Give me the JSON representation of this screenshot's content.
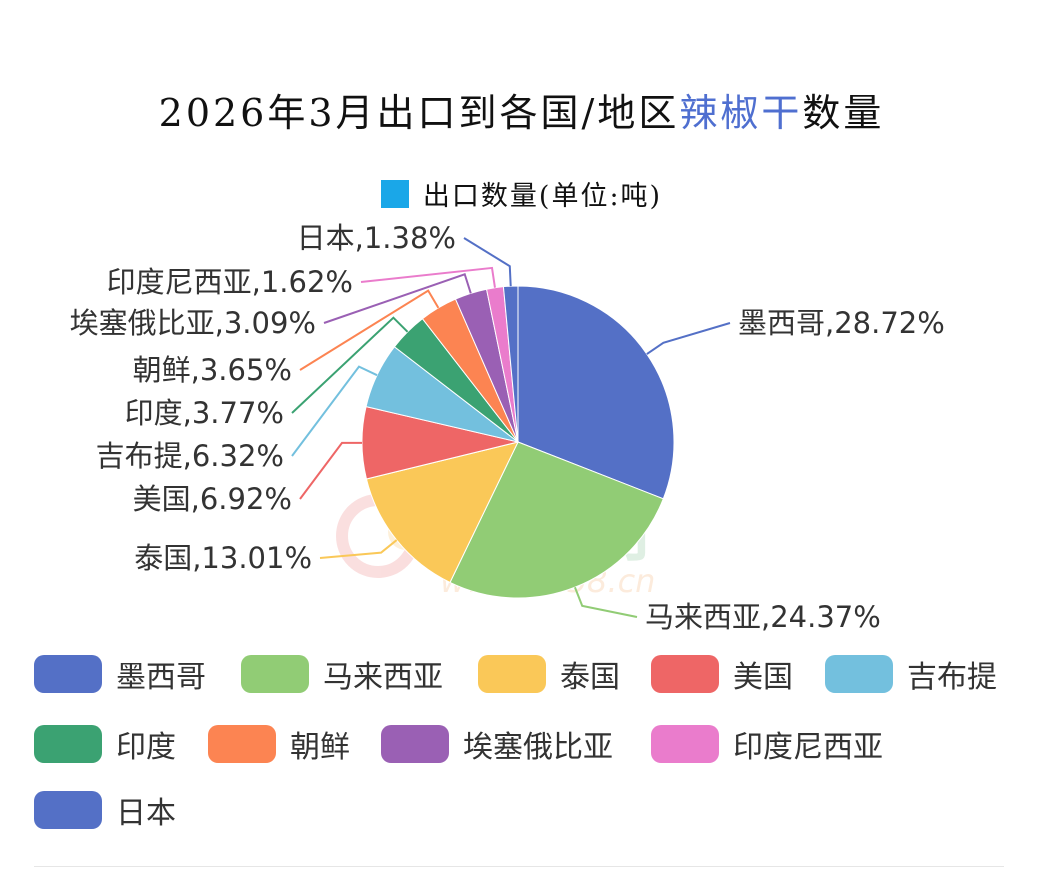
{
  "title": {
    "prefix": "2026年3月出口到各国/地区",
    "highlight": "辣椒干",
    "suffix": "数量"
  },
  "legend": {
    "label": "出口数量(单位:吨)",
    "color": "#1aa7e8"
  },
  "watermark": {
    "text": "中椒网",
    "url": "www.e658.cn"
  },
  "chart_data": {
    "type": "pie",
    "title": "2026年3月出口到各国/地区辣椒干数量",
    "series_name": "出口数量(单位:吨)",
    "unit": "%",
    "slices": [
      {
        "label": "墨西哥",
        "value": 28.72,
        "color": "#5470c6"
      },
      {
        "label": "马来西亚",
        "value": 24.37,
        "color": "#91cc75"
      },
      {
        "label": "泰国",
        "value": 13.01,
        "color": "#fac858"
      },
      {
        "label": "美国",
        "value": 6.92,
        "color": "#ee6666"
      },
      {
        "label": "吉布提",
        "value": 6.32,
        "color": "#73c0de"
      },
      {
        "label": "印度",
        "value": 3.77,
        "color": "#3ba272"
      },
      {
        "label": "朝鲜",
        "value": 3.65,
        "color": "#fc8452"
      },
      {
        "label": "埃塞俄比亚",
        "value": 3.09,
        "color": "#9a60b4"
      },
      {
        "label": "印度尼西亚",
        "value": 1.62,
        "color": "#ea7ccc"
      },
      {
        "label": "日本",
        "value": 1.38,
        "color": "#5470c6"
      }
    ],
    "legend_position": "bottom"
  }
}
